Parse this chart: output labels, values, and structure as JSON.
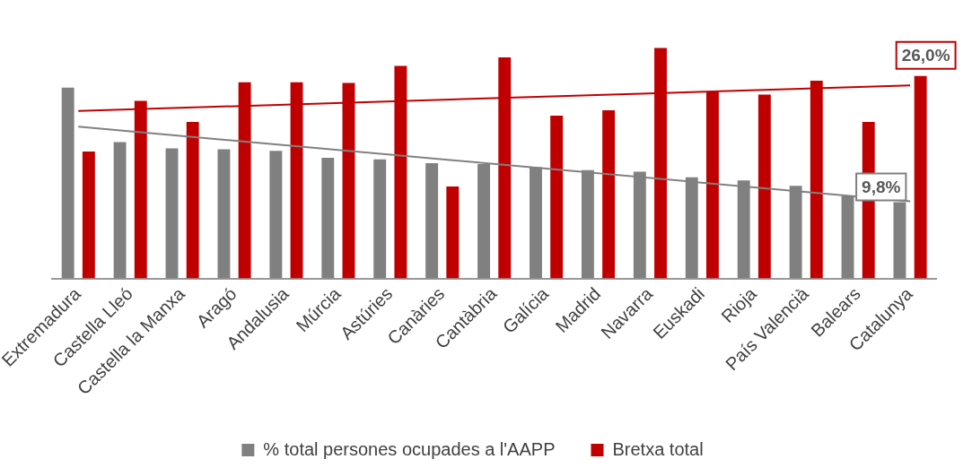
{
  "chart_data": {
    "type": "bar",
    "categories": [
      "Extremadura",
      "Castella Lleó",
      "Castella la Manxa",
      "Aragó",
      "Andalusia",
      "Múrcia",
      "Astúries",
      "Canàries",
      "Cantàbria",
      "Galícia",
      "Madrid",
      "Navarra",
      "Euskadi",
      "Rioja",
      "País Valencià",
      "Balears",
      "Catalunya"
    ],
    "series": [
      {
        "name": "% total persones ocupades a l'AAPP",
        "color": "#808080",
        "values": [
          24.5,
          17.5,
          16.7,
          16.6,
          16.4,
          15.5,
          15.3,
          14.8,
          14.7,
          14.3,
          13.9,
          13.7,
          13.0,
          12.6,
          11.9,
          10.6,
          9.8
        ],
        "value_labels": [
          null,
          null,
          null,
          null,
          null,
          null,
          null,
          null,
          null,
          null,
          null,
          null,
          null,
          null,
          null,
          null,
          "9,8%"
        ]
      },
      {
        "name": "Bretxa total",
        "color": "#c00000",
        "values": [
          16.3,
          22.8,
          20.1,
          25.2,
          25.2,
          25.1,
          27.3,
          11.8,
          28.4,
          20.9,
          21.6,
          29.6,
          24.0,
          23.6,
          25.4,
          20.1,
          26.0
        ],
        "value_labels": [
          null,
          null,
          null,
          null,
          null,
          null,
          null,
          null,
          null,
          null,
          null,
          null,
          null,
          null,
          null,
          null,
          "26,0%"
        ]
      },
      {
        "type": "line",
        "color": "#808080",
        "x": [
          "Extremadura",
          "Catalunya"
        ],
        "values": [
          19.5,
          9.9
        ]
      },
      {
        "type": "line",
        "color": "#c00000",
        "x": [
          "Extremadura",
          "Catalunya"
        ],
        "values": [
          21.5,
          24.8
        ]
      }
    ],
    "legend": "bottom",
    "grid": false
  }
}
